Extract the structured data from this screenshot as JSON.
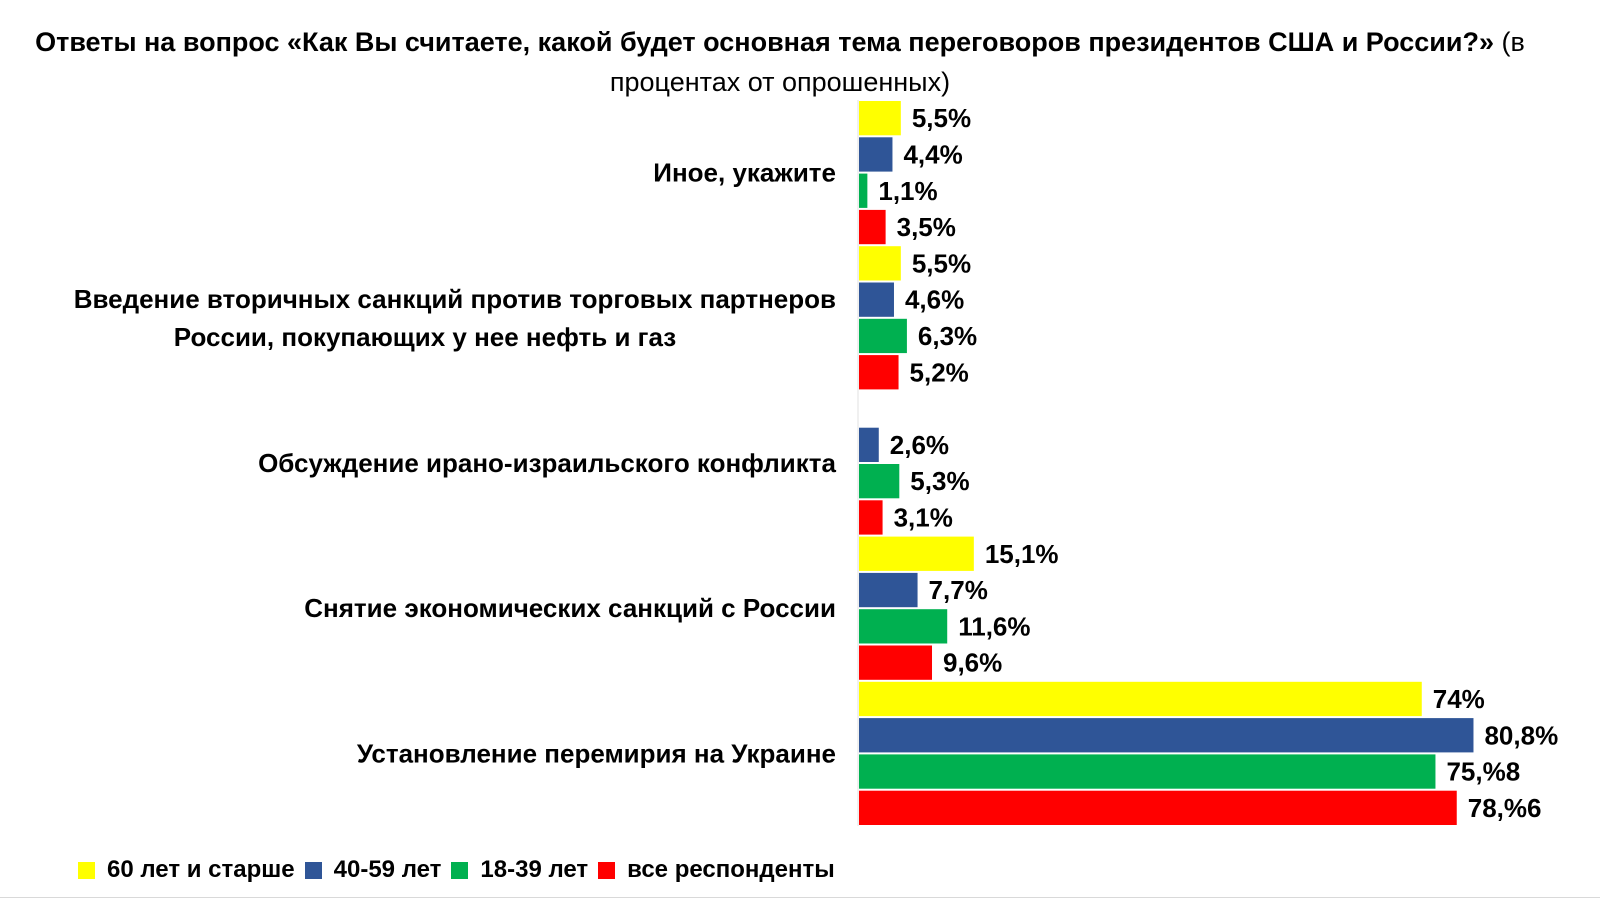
{
  "title": {
    "bold_text": "Ответы на вопрос «Как Вы считаете, какой будет основная тема переговоров президентов США и России?»",
    "normal_text": "(в процентах от опрошенных)"
  },
  "chart_data": {
    "type": "bar",
    "orientation": "horizontal",
    "categories": [
      "Иное, укажите",
      "Введение вторичных санкций против торговых партнеров России, покупающих у нее нефть и газ",
      "Обсуждение ирано-израильского конфликта",
      "Снятие экономических санкций с России",
      "Установление перемирия на Украине"
    ],
    "series": [
      {
        "name": "60 лет и старше",
        "color": "#ffff00",
        "values": [
          5.5,
          5.5,
          null,
          15.1,
          74
        ],
        "labels": [
          "5,5%",
          "5,5%",
          "",
          "15,1%",
          "74%"
        ]
      },
      {
        "name": "40-59 лет",
        "color": "#2f5597",
        "values": [
          4.4,
          4.6,
          2.6,
          7.7,
          80.8
        ],
        "labels": [
          "4,4%",
          "4,6%",
          "2,6%",
          "7,7%",
          "80,8%"
        ]
      },
      {
        "name": "18-39 лет",
        "color": "#00b050",
        "values": [
          1.1,
          6.3,
          5.3,
          11.6,
          75.8
        ],
        "labels": [
          "1,1%",
          "6,3%",
          "5,3%",
          "11,6%",
          "75,%8"
        ]
      },
      {
        "name": "все респонденты",
        "color": "#ff0000",
        "values": [
          3.5,
          5.2,
          3.1,
          9.6,
          78.6
        ],
        "labels": [
          "3,5%",
          "5,2%",
          "3,1%",
          "9,6%",
          "78,%6"
        ]
      }
    ],
    "xlim": [
      0,
      81
    ],
    "grid": false,
    "legend_position": "bottom-left"
  }
}
